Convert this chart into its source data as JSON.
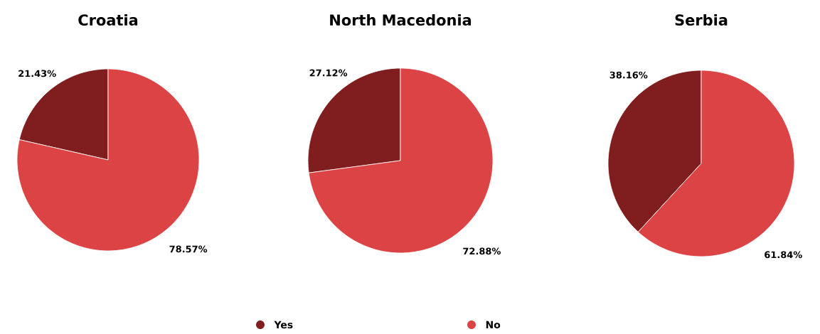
{
  "chart_data": [
    {
      "type": "pie",
      "title": "Croatia",
      "categories": [
        null,
        null
      ],
      "values": [
        21.43,
        78.57
      ],
      "value_labels": [
        "21.43%",
        "78.57%"
      ],
      "colors": [
        "#7f1d1f",
        "#dc4345"
      ]
    },
    {
      "type": "pie",
      "title": "North Macedonia",
      "categories": [
        "Yes",
        "No"
      ],
      "values": [
        27.12,
        72.88
      ],
      "value_labels": [
        "27.12%",
        "72.88%"
      ],
      "colors": [
        "#7f1d1f",
        "#dc4345"
      ],
      "legend": "bottom"
    },
    {
      "type": "pie",
      "title": "Serbia",
      "categories": [
        null,
        null
      ],
      "values": [
        38.16,
        61.84
      ],
      "value_labels": [
        "38.16%",
        "61.84%"
      ],
      "colors": [
        "#7f1d1f",
        "#dc4345"
      ]
    }
  ]
}
